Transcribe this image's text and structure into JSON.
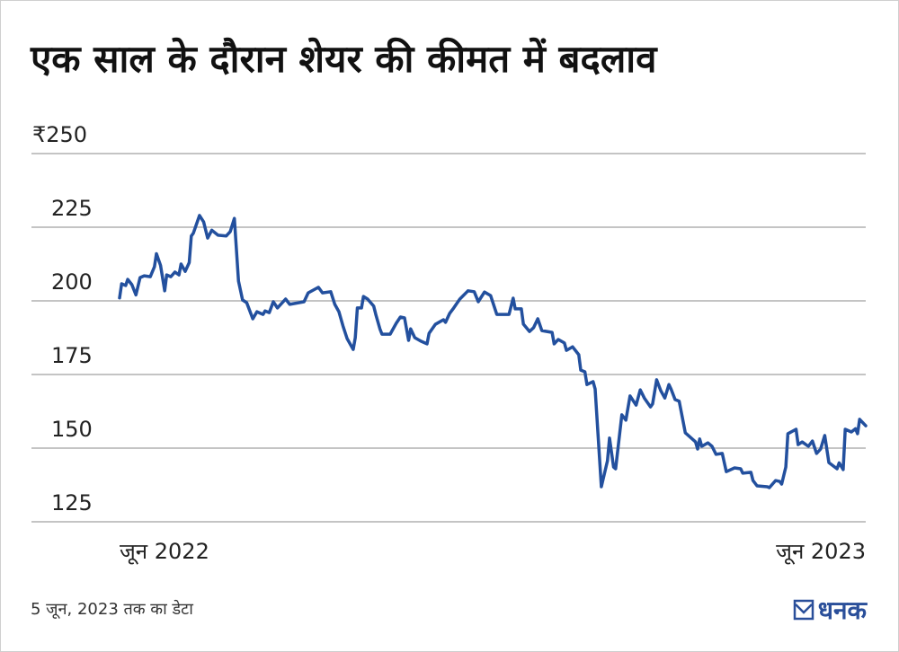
{
  "title": "एक साल के दौरान शेयर की कीमत में बदलाव",
  "footer": "5 जून, 2023 तक का डेटा",
  "logo": "धनक",
  "colors": {
    "line": "#23509e",
    "grid": "#c4c4c4",
    "logo": "#2a4f9a"
  },
  "chart_data": {
    "type": "line",
    "title": "एक साल के दौरान शेयर की कीमत में बदलाव",
    "xlabel": "",
    "ylabel": "",
    "ylim": [
      125,
      250
    ],
    "xlim": [
      "2022-06-06",
      "2023-06-05"
    ],
    "y_ticks": [
      {
        "v": 250,
        "label": "₹250"
      },
      {
        "v": 225,
        "label": "225"
      },
      {
        "v": 200,
        "label": "200"
      },
      {
        "v": 175,
        "label": "175"
      },
      {
        "v": 150,
        "label": "150"
      },
      {
        "v": 125,
        "label": "125"
      }
    ],
    "x_ticks": [
      {
        "v": "2022-06-06",
        "label": "जून 2022"
      },
      {
        "v": "2023-06-05",
        "label": "जून 2023"
      }
    ],
    "grid": "horizontal",
    "series": [
      {
        "points": [
          [
            "2022-06-06",
            201
          ],
          [
            "2022-06-07",
            205.8
          ],
          [
            "2022-06-09",
            205.2
          ],
          [
            "2022-06-10",
            207.3
          ],
          [
            "2022-06-12",
            205.5
          ],
          [
            "2022-06-14",
            202
          ],
          [
            "2022-06-16",
            207.9
          ],
          [
            "2022-06-18",
            208.5
          ],
          [
            "2022-06-21",
            208.2
          ],
          [
            "2022-06-23",
            211.6
          ],
          [
            "2022-06-24",
            216
          ],
          [
            "2022-06-26",
            212
          ],
          [
            "2022-06-28",
            203.4
          ],
          [
            "2022-06-29",
            208.8
          ],
          [
            "2022-07-01",
            208.2
          ],
          [
            "2022-07-03",
            209.8
          ],
          [
            "2022-07-05",
            208.8
          ],
          [
            "2022-07-06",
            212.5
          ],
          [
            "2022-07-08",
            210
          ],
          [
            "2022-07-10",
            213
          ],
          [
            "2022-07-11",
            222
          ],
          [
            "2022-07-12",
            223
          ],
          [
            "2022-07-15",
            229
          ],
          [
            "2022-07-17",
            226.8
          ],
          [
            "2022-07-19",
            221.3
          ],
          [
            "2022-07-21",
            224
          ],
          [
            "2022-07-24",
            222.3
          ],
          [
            "2022-07-28",
            222
          ],
          [
            "2022-07-30",
            223.5
          ],
          [
            "2022-08-01",
            228
          ],
          [
            "2022-08-03",
            206.7
          ],
          [
            "2022-08-05",
            200.3
          ],
          [
            "2022-08-07",
            199.4
          ],
          [
            "2022-08-10",
            193.9
          ],
          [
            "2022-08-12",
            196.3
          ],
          [
            "2022-08-15",
            195.4
          ],
          [
            "2022-08-16",
            196.6
          ],
          [
            "2022-08-18",
            196
          ],
          [
            "2022-08-20",
            199.7
          ],
          [
            "2022-08-22",
            197.6
          ],
          [
            "2022-08-26",
            200.6
          ],
          [
            "2022-08-28",
            198.8
          ],
          [
            "2022-09-04",
            199.7
          ],
          [
            "2022-09-06",
            202.7
          ],
          [
            "2022-09-11",
            204.6
          ],
          [
            "2022-09-13",
            202.7
          ],
          [
            "2022-09-17",
            203.1
          ],
          [
            "2022-09-19",
            198.8
          ],
          [
            "2022-09-21",
            196.3
          ],
          [
            "2022-09-23",
            191.5
          ],
          [
            "2022-09-25",
            187.2
          ],
          [
            "2022-09-28",
            183.5
          ],
          [
            "2022-09-29",
            187.5
          ],
          [
            "2022-09-30",
            197.6
          ],
          [
            "2022-10-02",
            197.6
          ],
          [
            "2022-10-03",
            201.5
          ],
          [
            "2022-10-05",
            200.6
          ],
          [
            "2022-10-08",
            198.2
          ],
          [
            "2022-10-09",
            195.4
          ],
          [
            "2022-10-11",
            190.5
          ],
          [
            "2022-10-12",
            188.7
          ],
          [
            "2022-10-16",
            188.7
          ],
          [
            "2022-10-19",
            192.4
          ],
          [
            "2022-10-21",
            194.5
          ],
          [
            "2022-10-23",
            194.2
          ],
          [
            "2022-10-25",
            186.6
          ],
          [
            "2022-10-26",
            190.5
          ],
          [
            "2022-10-28",
            187.5
          ],
          [
            "2022-10-31",
            186.3
          ],
          [
            "2022-11-03",
            185.4
          ],
          [
            "2022-11-04",
            189
          ],
          [
            "2022-11-07",
            192
          ],
          [
            "2022-11-11",
            193.6
          ],
          [
            "2022-11-12",
            192.7
          ],
          [
            "2022-11-14",
            195.7
          ],
          [
            "2022-11-16",
            197.6
          ],
          [
            "2022-11-19",
            200.6
          ],
          [
            "2022-11-23",
            203.4
          ],
          [
            "2022-11-26",
            203.1
          ],
          [
            "2022-11-28",
            199.7
          ],
          [
            "2022-12-01",
            203
          ],
          [
            "2022-12-04",
            201.8
          ],
          [
            "2022-12-07",
            195.4
          ],
          [
            "2022-12-13",
            195.4
          ],
          [
            "2022-12-15",
            200.9
          ],
          [
            "2022-12-16",
            197.3
          ],
          [
            "2022-12-19",
            197.3
          ],
          [
            "2022-12-20",
            192.1
          ],
          [
            "2022-12-23",
            189.6
          ],
          [
            "2022-12-25",
            190.9
          ],
          [
            "2022-12-27",
            193.9
          ],
          [
            "2022-12-29",
            189.9
          ],
          [
            "2023-01-03",
            189.3
          ],
          [
            "2023-01-04",
            185.4
          ],
          [
            "2023-01-06",
            186.9
          ],
          [
            "2023-01-09",
            185.7
          ],
          [
            "2023-01-10",
            183.2
          ],
          [
            "2023-01-13",
            184.4
          ],
          [
            "2023-01-16",
            181.7
          ],
          [
            "2023-01-17",
            176.5
          ],
          [
            "2023-01-19",
            175.9
          ],
          [
            "2023-01-20",
            171.6
          ],
          [
            "2023-01-23",
            172.6
          ],
          [
            "2023-01-24",
            170.1
          ],
          [
            "2023-01-27",
            136.9
          ],
          [
            "2023-01-30",
            145.7
          ],
          [
            "2023-01-31",
            153.4
          ],
          [
            "2023-02-02",
            143.6
          ],
          [
            "2023-02-03",
            143
          ],
          [
            "2023-02-06",
            161.3
          ],
          [
            "2023-02-08",
            159.5
          ],
          [
            "2023-02-10",
            167.7
          ],
          [
            "2023-02-13",
            164.6
          ],
          [
            "2023-02-15",
            169.8
          ],
          [
            "2023-02-17",
            167
          ],
          [
            "2023-02-20",
            164
          ],
          [
            "2023-02-21",
            165
          ],
          [
            "2023-02-23",
            173.2
          ],
          [
            "2023-02-25",
            169.5
          ],
          [
            "2023-02-27",
            167
          ],
          [
            "2023-03-01",
            171.6
          ],
          [
            "2023-03-02",
            170.1
          ],
          [
            "2023-03-04",
            166.5
          ],
          [
            "2023-03-06",
            165.9
          ],
          [
            "2023-03-09",
            155.2
          ],
          [
            "2023-03-14",
            152.1
          ],
          [
            "2023-03-15",
            149.7
          ],
          [
            "2023-03-16",
            153.1
          ],
          [
            "2023-03-17",
            150.6
          ],
          [
            "2023-03-20",
            151.8
          ],
          [
            "2023-03-22",
            150.6
          ],
          [
            "2023-03-24",
            147.9
          ],
          [
            "2023-03-27",
            148.2
          ],
          [
            "2023-03-29",
            142
          ],
          [
            "2023-04-02",
            143.3
          ],
          [
            "2023-04-05",
            143
          ],
          [
            "2023-04-06",
            141.5
          ],
          [
            "2023-04-10",
            141.8
          ],
          [
            "2023-04-11",
            139
          ],
          [
            "2023-04-13",
            137.2
          ],
          [
            "2023-04-18",
            136.9
          ],
          [
            "2023-04-19",
            136.6
          ],
          [
            "2023-04-22",
            139
          ],
          [
            "2023-04-24",
            138.7
          ],
          [
            "2023-04-25",
            137.8
          ],
          [
            "2023-04-27",
            143.6
          ],
          [
            "2023-04-28",
            154.9
          ],
          [
            "2023-05-02",
            156.4
          ],
          [
            "2023-05-03",
            151.2
          ],
          [
            "2023-05-05",
            152.1
          ],
          [
            "2023-05-08",
            150.6
          ],
          [
            "2023-05-10",
            152.4
          ],
          [
            "2023-05-12",
            148.2
          ],
          [
            "2023-05-14",
            149.7
          ],
          [
            "2023-05-16",
            154.3
          ],
          [
            "2023-05-18",
            145.1
          ],
          [
            "2023-05-22",
            143
          ],
          [
            "2023-05-23",
            145
          ],
          [
            "2023-05-25",
            142.7
          ],
          [
            "2023-05-26",
            156.4
          ],
          [
            "2023-05-29",
            155.5
          ],
          [
            "2023-05-31",
            156.6
          ],
          [
            "2023-06-01",
            154.9
          ],
          [
            "2023-06-02",
            159.8
          ],
          [
            "2023-06-05",
            157.6
          ]
        ]
      }
    ]
  }
}
